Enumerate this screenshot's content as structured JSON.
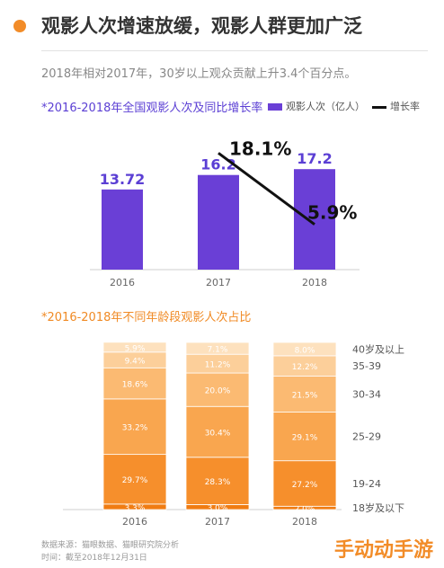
{
  "header": {
    "title": "观影人次增速放缓，观影人群更加广泛"
  },
  "subtitle": "2018年相对2017年，30岁以上观众贡献上升3.4个百分点。",
  "footer": {
    "source": "数据来源：猫眼数据、猫眼研究院分析",
    "time": "时间：截至2018年12月31日"
  },
  "logo": "手动动手游",
  "chart_data": [
    {
      "type": "bar",
      "title": "*2016-2018年全国观影人次及同比增长率",
      "categories": [
        "2016",
        "2017",
        "2018"
      ],
      "series": [
        {
          "name": "观影人次（亿人）",
          "values": [
            13.72,
            16.2,
            17.2
          ],
          "labels": [
            "13.72",
            "16.2",
            "17.2"
          ]
        },
        {
          "name": "增长率",
          "type": "line",
          "values": [
            null,
            18.1,
            5.9
          ],
          "labels": [
            "",
            "18.1%",
            "5.9%"
          ]
        }
      ],
      "ylim": [
        0,
        20
      ],
      "colors": {
        "bar": "#6a3fd6",
        "line": "#111111",
        "label": "#5b3fd4"
      }
    },
    {
      "type": "bar",
      "stacked": true,
      "percent": true,
      "title": "*2016-2018年不同年龄段观影人次占比",
      "categories": [
        "2016",
        "2017",
        "2018"
      ],
      "series": [
        {
          "name": "18岁及以下",
          "values": [
            3.3,
            3.0,
            2.0
          ],
          "labels": [
            "3.3%",
            "3.0%",
            "2.0%"
          ],
          "color": "#f07c12"
        },
        {
          "name": "19-24",
          "values": [
            29.7,
            28.3,
            27.2
          ],
          "labels": [
            "29.7%",
            "28.3%",
            "27.2%"
          ],
          "color": "#f68f2c"
        },
        {
          "name": "25-29",
          "values": [
            33.2,
            30.4,
            29.1
          ],
          "labels": [
            "33.2%",
            "30.4%",
            "29.1%"
          ],
          "color": "#f9a64f"
        },
        {
          "name": "30-34",
          "values": [
            18.6,
            20.0,
            21.5
          ],
          "labels": [
            "18.6%",
            "20.0%",
            "21.5%"
          ],
          "color": "#fbba72"
        },
        {
          "name": "35-39",
          "values": [
            9.4,
            11.2,
            12.2
          ],
          "labels": [
            "9.4%",
            "11.2%",
            "12.2%"
          ],
          "color": "#fccf9a"
        },
        {
          "name": "40岁及以上",
          "values": [
            5.9,
            7.1,
            8.0
          ],
          "labels": [
            "5.9%",
            "7.1%",
            "8.0%"
          ],
          "color": "#fde1be"
        }
      ],
      "ylim": [
        0,
        100
      ]
    }
  ]
}
